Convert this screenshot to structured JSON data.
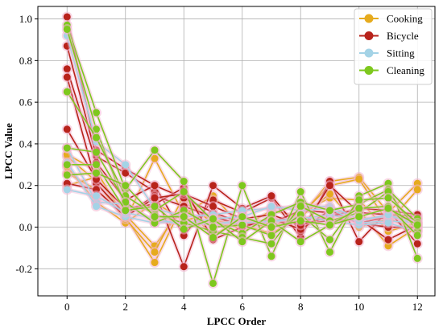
{
  "chart_data": {
    "type": "line",
    "title": "",
    "xlabel": "LPCC Order",
    "ylabel": "LPCC Value",
    "xlim": [
      -1,
      12.6
    ],
    "ylim": [
      -0.33,
      1.06
    ],
    "xticks": [
      0,
      2,
      4,
      6,
      8,
      10,
      12
    ],
    "yticks": [
      -0.2,
      0.0,
      0.2,
      0.4,
      0.6,
      0.8,
      1.0
    ],
    "grid": true,
    "legend_position": "top-right",
    "legend": [
      {
        "name": "Cooking",
        "color": "#e6ab1e"
      },
      {
        "name": "Bicycle",
        "color": "#b8231b"
      },
      {
        "name": "Sitting",
        "color": "#a4d3e6"
      },
      {
        "name": "Cleaning",
        "color": "#7ec81e"
      }
    ],
    "highlight_color": "#f2b6d0",
    "x": [
      0,
      1,
      2,
      3,
      4,
      5,
      6,
      7,
      8,
      9,
      10,
      11,
      12
    ],
    "series": [
      {
        "name": "Cooking",
        "color": "#e6ab1e",
        "values": [
          0.34,
          0.22,
          0.03,
          0.33,
          0.06,
          0.15,
          0.0,
          0.08,
          0.05,
          0.22,
          0.24,
          0.07,
          0.21
        ]
      },
      {
        "name": "Cooking",
        "color": "#e6ab1e",
        "values": [
          0.26,
          0.18,
          0.05,
          -0.17,
          0.12,
          0.03,
          0.02,
          0.0,
          0.06,
          0.2,
          0.23,
          0.02,
          0.18
        ]
      },
      {
        "name": "Cooking",
        "color": "#e6ab1e",
        "values": [
          0.2,
          0.24,
          0.06,
          -0.09,
          0.1,
          -0.04,
          0.04,
          0.02,
          0.07,
          0.14,
          0.13,
          -0.02,
          0.02
        ]
      },
      {
        "name": "Cooking",
        "color": "#e6ab1e",
        "values": [
          0.29,
          0.12,
          0.02,
          0.12,
          0.03,
          0.07,
          -0.02,
          0.05,
          -0.01,
          0.07,
          0.08,
          -0.09,
          0.0
        ]
      },
      {
        "name": "Cooking",
        "color": "#e6ab1e",
        "values": [
          0.35,
          0.27,
          0.04,
          -0.12,
          0.15,
          0.01,
          0.01,
          -0.03,
          0.05,
          0.16,
          0.0,
          0.04,
          -0.01
        ]
      },
      {
        "name": "Bicycle",
        "color": "#b8231b",
        "values": [
          1.01,
          0.37,
          0.28,
          0.2,
          -0.04,
          0.13,
          0.07,
          0.14,
          -0.05,
          0.22,
          -0.07,
          0.08,
          -0.08
        ]
      },
      {
        "name": "Bicycle",
        "color": "#b8231b",
        "values": [
          0.87,
          0.34,
          0.26,
          0.17,
          -0.19,
          0.2,
          0.09,
          0.15,
          -0.02,
          0.2,
          0.07,
          0.06,
          0.05
        ]
      },
      {
        "name": "Bicycle",
        "color": "#b8231b",
        "values": [
          0.76,
          0.31,
          0.13,
          0.2,
          0.14,
          0.07,
          0.02,
          0.02,
          0.08,
          0.07,
          0.02,
          0.0,
          0.0
        ]
      },
      {
        "name": "Bicycle",
        "color": "#b8231b",
        "values": [
          0.72,
          0.21,
          0.06,
          0.15,
          0.1,
          0.05,
          0.01,
          0.03,
          0.02,
          0.03,
          0.04,
          -0.06,
          0.01
        ]
      },
      {
        "name": "Bicycle",
        "color": "#b8231b",
        "values": [
          0.47,
          0.23,
          0.09,
          0.11,
          0.19,
          -0.06,
          0.0,
          0.04,
          -0.01,
          0.08,
          0.02,
          0.05,
          0.04
        ]
      },
      {
        "name": "Bicycle",
        "color": "#b8231b",
        "values": [
          0.21,
          0.18,
          0.05,
          0.14,
          0.16,
          0.1,
          0.04,
          0.06,
          0.01,
          0.05,
          0.09,
          0.08,
          0.06
        ]
      },
      {
        "name": "Sitting",
        "color": "#a4d3e6",
        "values": [
          0.92,
          0.41,
          0.3,
          0.09,
          0.05,
          0.06,
          0.08,
          0.09,
          0.1,
          0.1,
          0.04,
          0.05,
          0.03
        ]
      },
      {
        "name": "Sitting",
        "color": "#a4d3e6",
        "values": [
          0.38,
          0.12,
          0.11,
          0.03,
          0.02,
          0.04,
          0.05,
          0.1,
          0.08,
          0.09,
          0.02,
          0.03,
          0.02
        ]
      },
      {
        "name": "Sitting",
        "color": "#a4d3e6",
        "values": [
          0.31,
          0.1,
          0.05,
          0.02,
          0.03,
          0.01,
          0.04,
          0.02,
          0.05,
          0.03,
          0.01,
          0.02,
          -0.02
        ]
      },
      {
        "name": "Sitting",
        "color": "#a4d3e6",
        "values": [
          0.18,
          0.15,
          0.07,
          0.04,
          0.01,
          0.02,
          0.02,
          0.03,
          0.04,
          0.06,
          0.03,
          0.06,
          0.01
        ]
      },
      {
        "name": "Cleaning",
        "color": "#7ec81e",
        "values": [
          0.97,
          0.55,
          0.18,
          0.37,
          0.22,
          -0.27,
          0.2,
          -0.14,
          0.17,
          -0.12,
          0.15,
          0.21,
          -0.15
        ]
      },
      {
        "name": "Cleaning",
        "color": "#7ec81e",
        "values": [
          0.95,
          0.47,
          0.1,
          0.08,
          0.17,
          0.03,
          -0.03,
          0.06,
          0.12,
          0.08,
          0.11,
          0.18,
          0.04
        ]
      },
      {
        "name": "Cleaning",
        "color": "#7ec81e",
        "values": [
          0.65,
          0.43,
          0.15,
          0.06,
          0.02,
          -0.02,
          -0.05,
          -0.08,
          0.1,
          0.03,
          0.07,
          0.17,
          -0.02
        ]
      },
      {
        "name": "Cleaning",
        "color": "#7ec81e",
        "values": [
          0.38,
          0.36,
          0.12,
          0.02,
          0.08,
          0.0,
          0.01,
          -0.04,
          0.06,
          -0.06,
          0.13,
          0.14,
          0.02
        ]
      },
      {
        "name": "Cleaning",
        "color": "#7ec81e",
        "values": [
          0.3,
          0.3,
          0.08,
          0.1,
          -0.01,
          0.04,
          -0.07,
          0.03,
          -0.07,
          0.01,
          0.09,
          0.1,
          -0.04
        ]
      },
      {
        "name": "Cleaning",
        "color": "#7ec81e",
        "values": [
          0.25,
          0.26,
          0.2,
          0.05,
          0.05,
          -0.05,
          0.05,
          0.0,
          0.03,
          0.01,
          0.05,
          0.09,
          0.01
        ]
      }
    ]
  }
}
